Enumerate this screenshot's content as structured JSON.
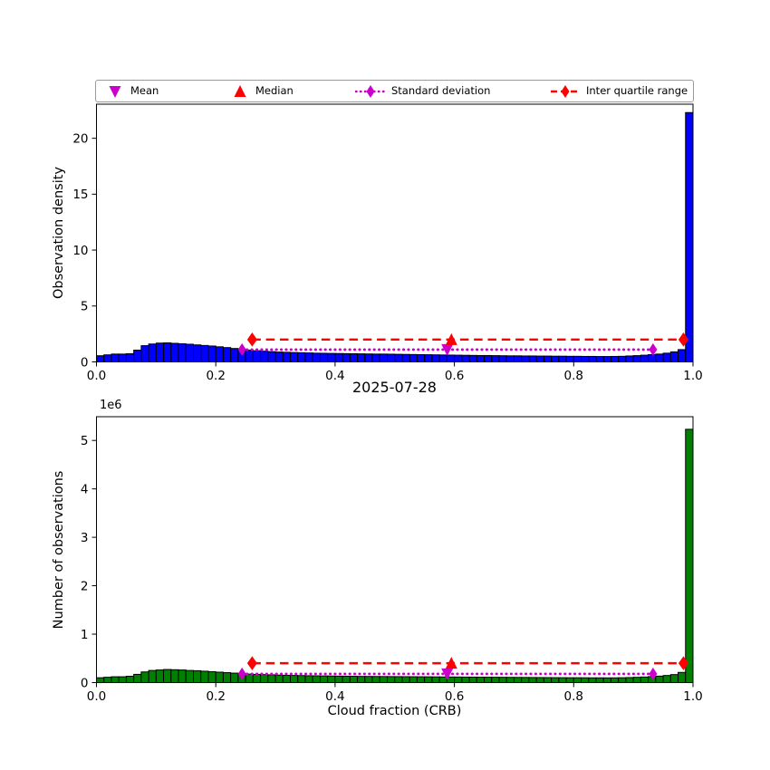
{
  "figure": {
    "title": "2025-07-28",
    "background": "#ffffff"
  },
  "legend": {
    "items": [
      {
        "label": "Mean",
        "marker": "triangle-down",
        "color": "#cc00cc",
        "line": "none"
      },
      {
        "label": "Median",
        "marker": "triangle-up",
        "color": "#ff0000",
        "line": "none"
      },
      {
        "label": "Standard deviation",
        "marker": "diamond",
        "color": "#cc00cc",
        "line": "dotted"
      },
      {
        "label": "Inter quartile range",
        "marker": "diamond",
        "color": "#ff0000",
        "line": "dashed"
      }
    ]
  },
  "colors": {
    "density_bar": "#0000ff",
    "counts_bar": "#008000",
    "bar_edge": "#000000",
    "iqr": "#ff0000",
    "std": "#cc00cc",
    "axis": "#000000"
  },
  "chart_data": [
    {
      "type": "bar",
      "id": "density",
      "title": "",
      "ylabel": "Observation density",
      "xlabel": "",
      "bar_color": "#0000ff",
      "bar_edge": "#000000",
      "grid": false,
      "legend_position": "top",
      "xlim": [
        0.0,
        1.0
      ],
      "ylim": [
        0,
        23.05
      ],
      "xticks": [
        0.0,
        0.2,
        0.4,
        0.6,
        0.8,
        1.0
      ],
      "xtick_labels": [
        "0.0",
        "0.2",
        "0.4",
        "0.6",
        "0.8",
        "1.0"
      ],
      "yticks": [
        0,
        5,
        10,
        15,
        20
      ],
      "bin_start": 0.0,
      "bin_width": 0.0125,
      "values": [
        0.55,
        0.63,
        0.7,
        0.7,
        0.73,
        1.05,
        1.45,
        1.6,
        1.68,
        1.7,
        1.66,
        1.62,
        1.58,
        1.52,
        1.47,
        1.42,
        1.35,
        1.28,
        1.2,
        1.12,
        1.05,
        1.0,
        0.96,
        0.92,
        0.88,
        0.86,
        0.84,
        0.82,
        0.8,
        0.78,
        0.77,
        0.76,
        0.75,
        0.74,
        0.73,
        0.72,
        0.71,
        0.7,
        0.7,
        0.69,
        0.68,
        0.67,
        0.66,
        0.65,
        0.64,
        0.63,
        0.62,
        0.61,
        0.6,
        0.59,
        0.58,
        0.57,
        0.57,
        0.56,
        0.55,
        0.54,
        0.54,
        0.53,
        0.53,
        0.52,
        0.52,
        0.51,
        0.51,
        0.5,
        0.5,
        0.49,
        0.49,
        0.48,
        0.48,
        0.49,
        0.5,
        0.53,
        0.56,
        0.6,
        0.65,
        0.7,
        0.78,
        0.9,
        1.1,
        22.3
      ],
      "stats": {
        "mean_x": 0.588,
        "median_x": 0.595,
        "std_low_x": 0.244,
        "std_high_x": 0.933,
        "iqr_low_x": 0.261,
        "iqr_high_x": 0.984,
        "iqr_line_y": 2.0,
        "std_line_y": 1.1
      }
    },
    {
      "type": "bar",
      "id": "counts",
      "title": "2025-07-28",
      "ylabel": "Number of observations",
      "xlabel": "Cloud fraction (CRB)",
      "offset_text": "1e6",
      "unit_scale": 1000000,
      "bar_color": "#008000",
      "bar_edge": "#000000",
      "grid": false,
      "xlim": [
        0.0,
        1.0
      ],
      "ylim": [
        0,
        5.49
      ],
      "xticks": [
        0.0,
        0.2,
        0.4,
        0.6,
        0.8,
        1.0
      ],
      "xtick_labels": [
        "0.0",
        "0.2",
        "0.4",
        "0.6",
        "0.8",
        "1.0"
      ],
      "yticks": [
        0,
        1,
        2,
        3,
        4,
        5
      ],
      "bin_start": 0.0,
      "bin_width": 0.0125,
      "values": [
        0.1,
        0.11,
        0.12,
        0.12,
        0.13,
        0.17,
        0.22,
        0.25,
        0.26,
        0.27,
        0.265,
        0.26,
        0.25,
        0.245,
        0.235,
        0.225,
        0.215,
        0.205,
        0.195,
        0.185,
        0.175,
        0.17,
        0.165,
        0.16,
        0.155,
        0.15,
        0.148,
        0.145,
        0.142,
        0.14,
        0.138,
        0.136,
        0.134,
        0.132,
        0.13,
        0.128,
        0.127,
        0.126,
        0.125,
        0.124,
        0.123,
        0.122,
        0.121,
        0.12,
        0.119,
        0.118,
        0.117,
        0.116,
        0.115,
        0.114,
        0.113,
        0.112,
        0.111,
        0.11,
        0.109,
        0.108,
        0.107,
        0.106,
        0.105,
        0.104,
        0.103,
        0.102,
        0.101,
        0.1,
        0.1,
        0.099,
        0.098,
        0.098,
        0.097,
        0.098,
        0.1,
        0.104,
        0.109,
        0.115,
        0.123,
        0.133,
        0.146,
        0.165,
        0.21,
        5.23
      ],
      "stats": {
        "mean_x": 0.588,
        "median_x": 0.595,
        "std_low_x": 0.244,
        "std_high_x": 0.933,
        "iqr_low_x": 0.261,
        "iqr_high_x": 0.984,
        "iqr_line_y": 0.4,
        "std_line_y": 0.18
      }
    }
  ]
}
